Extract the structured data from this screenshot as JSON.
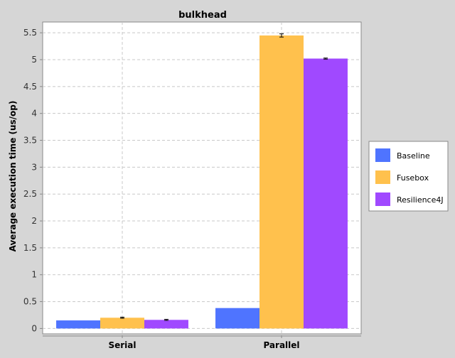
{
  "chart_data": {
    "type": "bar",
    "title": "bulkhead",
    "xlabel": "",
    "ylabel": "Average execution time (us/op)",
    "categories": [
      "Serial",
      "Parallel"
    ],
    "series": [
      {
        "name": "Baseline",
        "values": [
          0.15,
          0.38
        ],
        "errors": [
          0,
          0
        ],
        "color": "#4f74ff"
      },
      {
        "name": "Fusebox",
        "values": [
          0.2,
          5.45
        ],
        "errors": [
          0.01,
          0.03
        ],
        "color": "#ffc14d"
      },
      {
        "name": "Resilience4J",
        "values": [
          0.16,
          5.02
        ],
        "errors": [
          0.01,
          0.01
        ],
        "color": "#a049ff"
      }
    ],
    "ylim": [
      -0.1,
      5.7
    ],
    "yticks": [
      0,
      0.5,
      1,
      1.5,
      2,
      2.5,
      3,
      3.5,
      4,
      4.5,
      5,
      5.5
    ],
    "grid": true,
    "legend_position": "right"
  }
}
